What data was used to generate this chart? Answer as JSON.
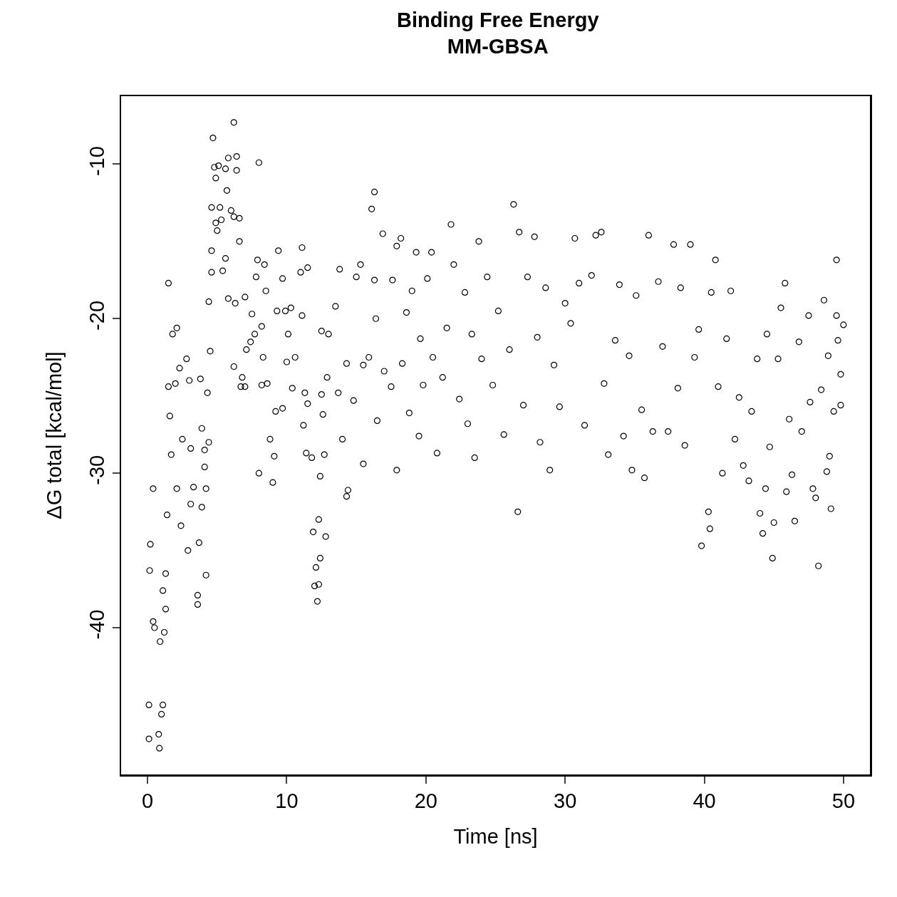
{
  "chart_data": {
    "type": "scatter",
    "title": "Binding Free Energy\nMM-GBSA",
    "xlabel": "Time [ns]",
    "ylabel": "ΔG total [kcal/mol]",
    "xlim": [
      -1.9,
      51.9
    ],
    "ylim": [
      -49.5,
      -5.6
    ],
    "xticks": [
      0,
      10,
      20,
      30,
      40,
      50
    ],
    "yticks": [
      -40,
      -30,
      -20,
      -10
    ],
    "grid": false,
    "marker": "circle",
    "series": [
      {
        "color": "#000000",
        "x": [
          0.1,
          0.1,
          0.15,
          0.2,
          0.4,
          0.4,
          0.5,
          0.85,
          0.8,
          1.0,
          1.1,
          0.9,
          1.1,
          1.3,
          1.3,
          1.2,
          1.4,
          1.5,
          1.5,
          1.6,
          1.7,
          1.8,
          2.1,
          2.0,
          2.1,
          2.4,
          2.3,
          2.5,
          2.9,
          2.8,
          3.0,
          3.1,
          3.1,
          3.3,
          3.6,
          3.6,
          3.7,
          3.8,
          3.9,
          3.9,
          4.1,
          4.1,
          4.2,
          4.2,
          4.3,
          4.4,
          4.4,
          4.5,
          4.6,
          4.6,
          4.6,
          4.7,
          4.8,
          4.9,
          4.9,
          5.0,
          5.1,
          5.2,
          5.3,
          5.4,
          5.6,
          5.7,
          5.6,
          5.8,
          5.8,
          6.0,
          6.2,
          6.2,
          6.4,
          6.4,
          6.6,
          6.6,
          6.3,
          6.2,
          6.7,
          6.8,
          7.0,
          7.1,
          7.0,
          7.4,
          7.5,
          7.7,
          7.8,
          7.9,
          8.0,
          8.0,
          8.2,
          8.3,
          8.2,
          8.4,
          8.5,
          8.6,
          8.8,
          9.0,
          9.1,
          9.2,
          9.3,
          9.4,
          9.7,
          9.7,
          9.9,
          10.0,
          10.1,
          10.3,
          10.4,
          10.6,
          11.0,
          11.1,
          11.1,
          11.2,
          11.3,
          11.4,
          11.5,
          11.5,
          11.8,
          11.9,
          12.0,
          12.1,
          12.2,
          12.3,
          12.3,
          12.4,
          12.4,
          12.5,
          12.5,
          12.6,
          12.7,
          12.8,
          12.9,
          13.0,
          13.5,
          13.7,
          13.8,
          14.0,
          14.3,
          14.4,
          14.3,
          14.8,
          15.0,
          15.5,
          15.5,
          15.3,
          15.9,
          16.1,
          16.3,
          16.3,
          16.4,
          16.9,
          16.5,
          17.0,
          17.5,
          17.6,
          17.9,
          17.9,
          18.2,
          18.3,
          18.6,
          18.8,
          19.0,
          19.3,
          19.5,
          19.6,
          19.8,
          20.1,
          20.4,
          20.5,
          20.8,
          21.2,
          21.5,
          21.8,
          22.0,
          22.4,
          22.8,
          23.0,
          23.3,
          23.5,
          23.8,
          24.0,
          24.4,
          24.8,
          25.2,
          25.6,
          26.0,
          26.3,
          26.6,
          26.7,
          27.0,
          27.3,
          27.8,
          28.0,
          28.2,
          28.6,
          28.9,
          29.2,
          29.6,
          30.0,
          30.4,
          30.7,
          31.0,
          31.4,
          31.9,
          32.2,
          32.6,
          32.8,
          33.1,
          33.6,
          33.9,
          34.2,
          34.6,
          34.8,
          35.1,
          35.5,
          35.7,
          36.0,
          36.3,
          36.7,
          37.0,
          37.4,
          37.8,
          38.1,
          38.3,
          38.6,
          39.0,
          39.3,
          39.6,
          39.8,
          40.3,
          40.4,
          40.5,
          40.8,
          41.0,
          41.3,
          41.6,
          41.9,
          42.2,
          42.5,
          42.8,
          43.2,
          43.4,
          43.8,
          44.0,
          44.2,
          44.4,
          44.5,
          44.7,
          44.9,
          45.0,
          45.3,
          45.5,
          45.8,
          45.9,
          46.1,
          46.3,
          46.5,
          46.8,
          47.0,
          47.5,
          47.6,
          47.8,
          48.0,
          48.2,
          48.4,
          48.6,
          48.8,
          48.9,
          49.1,
          49.0,
          49.3,
          49.5,
          49.5,
          49.6,
          49.8,
          50.0,
          49.8
        ],
        "values": [
          -47.2,
          -45,
          -36.3,
          -34.6,
          -31,
          -39.6,
          -40,
          -47.8,
          -46.9,
          -45.6,
          -45,
          -40.9,
          -37.6,
          -36.5,
          -38.8,
          -40.3,
          -32.7,
          -17.7,
          -24.4,
          -26.3,
          -28.8,
          -21,
          -20.6,
          -24.2,
          -31,
          -33.4,
          -23.2,
          -27.8,
          -35,
          -22.6,
          -24,
          -28.4,
          -32,
          -30.9,
          -38.5,
          -37.9,
          -34.5,
          -23.9,
          -32.2,
          -27.1,
          -28.5,
          -29.6,
          -31,
          -36.6,
          -24.8,
          -28,
          -18.9,
          -22.1,
          -17,
          -15.6,
          -12.8,
          -8.3,
          -10.2,
          -10.9,
          -13.8,
          -14.3,
          -10.1,
          -12.8,
          -13.6,
          -16.9,
          -10.3,
          -11.7,
          -16.1,
          -9.6,
          -18.7,
          -13,
          -7.3,
          -13.4,
          -10.4,
          -9.5,
          -13.5,
          -15,
          -19,
          -23.1,
          -24.4,
          -23.8,
          -18.6,
          -22,
          -24.4,
          -21.5,
          -19.7,
          -21,
          -17.3,
          -16.2,
          -9.9,
          -30,
          -24.3,
          -22.5,
          -20.5,
          -16.5,
          -18.2,
          -24.2,
          -27.8,
          -30.6,
          -28.9,
          -26,
          -19.5,
          -15.6,
          -25.8,
          -17.4,
          -19.5,
          -22.8,
          -21,
          -19.3,
          -24.5,
          -22.5,
          -17,
          -19.8,
          -15.4,
          -26.9,
          -24.8,
          -28.7,
          -16.7,
          -25.5,
          -29,
          -33.8,
          -37.3,
          -36.1,
          -38.3,
          -37.2,
          -33,
          -35.5,
          -30.2,
          -20.8,
          -24.9,
          -26.2,
          -28.8,
          -34.1,
          -23.8,
          -21,
          -19.2,
          -24.8,
          -16.8,
          -27.8,
          -31.5,
          -31.1,
          -22.9,
          -25.3,
          -17.3,
          -23,
          -29.4,
          -16.5,
          -22.5,
          -12.9,
          -11.8,
          -17.5,
          -20,
          -14.5,
          -26.6,
          -23.4,
          -24.4,
          -17.5,
          -29.8,
          -15.3,
          -14.8,
          -22.9,
          -19.6,
          -26.1,
          -18.2,
          -15.7,
          -27.6,
          -21.3,
          -24.3,
          -17.4,
          -15.7,
          -22.5,
          -28.7,
          -23.8,
          -20.6,
          -13.9,
          -16.5,
          -25.2,
          -18.3,
          -26.8,
          -21,
          -29,
          -15,
          -22.6,
          -17.3,
          -24.3,
          -19.5,
          -27.5,
          -22,
          -12.6,
          -32.5,
          -14.4,
          -25.6,
          -17.3,
          -14.7,
          -21.2,
          -28,
          -18,
          -29.8,
          -23,
          -25.7,
          -19,
          -20.3,
          -14.8,
          -17.7,
          -26.9,
          -17.2,
          -14.6,
          -14.4,
          -24.2,
          -28.8,
          -21.4,
          -17.8,
          -27.6,
          -22.4,
          -29.8,
          -18.5,
          -25.9,
          -30.3,
          -14.6,
          -27.3,
          -17.6,
          -21.8,
          -27.3,
          -15.2,
          -24.5,
          -18,
          -28.2,
          -15.2,
          -22.5,
          -20.7,
          -34.7,
          -32.5,
          -33.6,
          -18.3,
          -16.2,
          -24.4,
          -30,
          -21.3,
          -18.2,
          -27.8,
          -25.1,
          -29.5,
          -30.5,
          -26,
          -22.6,
          -32.6,
          -33.9,
          -31,
          -21,
          -28.3,
          -35.5,
          -33.2,
          -22.6,
          -19.3,
          -17.7,
          -31.2,
          -26.5,
          -30.1,
          -33.1,
          -21.5,
          -27.3,
          -19.8,
          -25.4,
          -31,
          -31.6,
          -36,
          -24.6,
          -18.8,
          -29.9,
          -22.4,
          -32.3,
          -28.9,
          -26,
          -16.2,
          -19.8,
          -21.4,
          -25.6,
          -20.4,
          -23.6
        ]
      }
    ]
  }
}
